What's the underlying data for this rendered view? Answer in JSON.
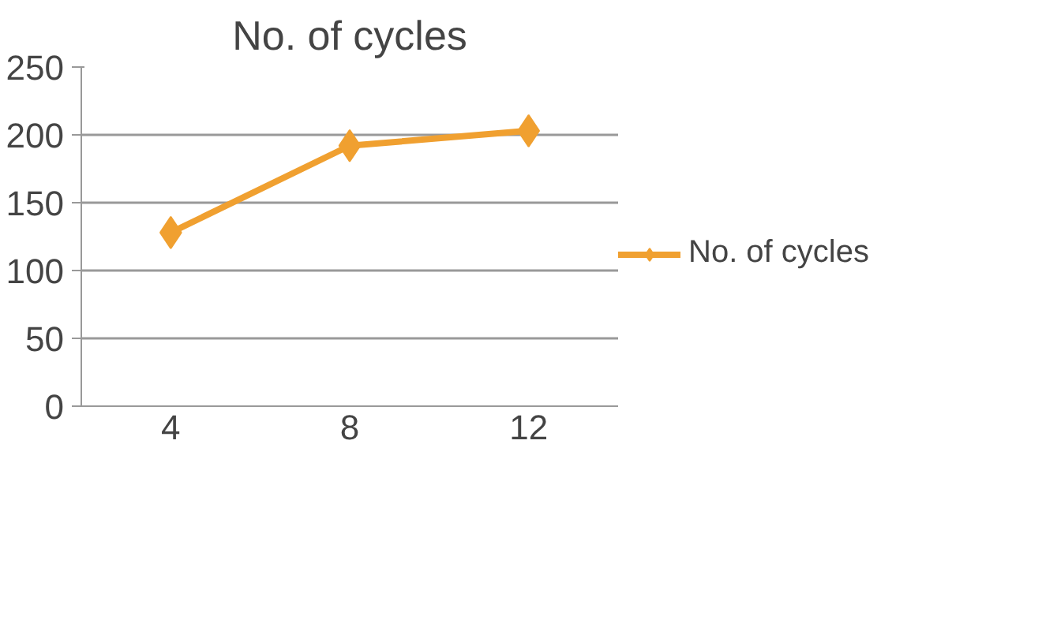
{
  "chart_data": {
    "type": "line",
    "title": "No. of cycles",
    "categories": [
      "4",
      "8",
      "12"
    ],
    "series": [
      {
        "name": "No. of cycles",
        "color": "#f0a030",
        "values": [
          128,
          192,
          203
        ]
      }
    ],
    "ylim": [
      0,
      250
    ],
    "yticks": [
      0,
      50,
      100,
      150,
      200,
      250
    ],
    "grid": "y",
    "legend": "right",
    "marker": "diamond",
    "line_style": "solid"
  }
}
